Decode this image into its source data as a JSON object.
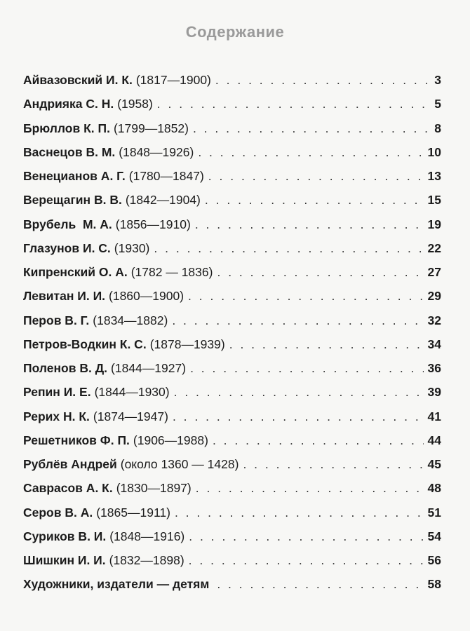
{
  "title": "Содержание",
  "entries": [
    {
      "name": "Айвазовский И. К.",
      "years": "(1817—1900)",
      "page": "3"
    },
    {
      "name": "Андрияка С. Н.",
      "years": "(1958)",
      "page": "5"
    },
    {
      "name": "Брюллов К. П.",
      "years": "(1799—1852)",
      "page": "8"
    },
    {
      "name": "Васнецов В. М.",
      "years": "(1848—1926)",
      "page": "10"
    },
    {
      "name": "Венецианов А. Г.",
      "years": "(1780—1847)",
      "page": "13"
    },
    {
      "name": "Верещагин В. В.",
      "years": "(1842—1904)",
      "page": "15"
    },
    {
      "name": "Врубель  М. А.",
      "years": "(1856—1910)",
      "page": "19"
    },
    {
      "name": "Глазунов И. С.",
      "years": "(1930)",
      "page": "22"
    },
    {
      "name": "Кипренский О. А.",
      "years": "(1782 — 1836)",
      "page": "27"
    },
    {
      "name": "Левитан И. И.",
      "years": "(1860—1900)",
      "page": "29"
    },
    {
      "name": "Перов В. Г.",
      "years": "(1834—1882)",
      "page": "32"
    },
    {
      "name": "Петров-Водкин К. С.",
      "years": "(1878—1939)",
      "page": "34"
    },
    {
      "name": "Поленов В. Д.",
      "years": "(1844—1927)",
      "page": "36"
    },
    {
      "name": "Репин И. Е.",
      "years": "(1844—1930)",
      "page": "39"
    },
    {
      "name": "Рерих Н. К.",
      "years": "(1874—1947)",
      "page": "41"
    },
    {
      "name": "Решетников Ф. П.",
      "years": "(1906—1988)",
      "page": "44"
    },
    {
      "name": "Рублёв Андрей",
      "years": "(около 1360 — 1428)",
      "page": "45"
    },
    {
      "name": "Саврасов А. К.",
      "years": "(1830—1897)",
      "page": "48"
    },
    {
      "name": "Серов В. А.",
      "years": "(1865—1911)",
      "page": "51"
    },
    {
      "name": "Суриков В. И.",
      "years": "(1848—1916)",
      "page": "54"
    },
    {
      "name": "Шишкин И. И.",
      "years": "(1832—1898)",
      "page": "56"
    },
    {
      "name": "Художники, издатели — детям",
      "years": "",
      "page": "58"
    }
  ]
}
